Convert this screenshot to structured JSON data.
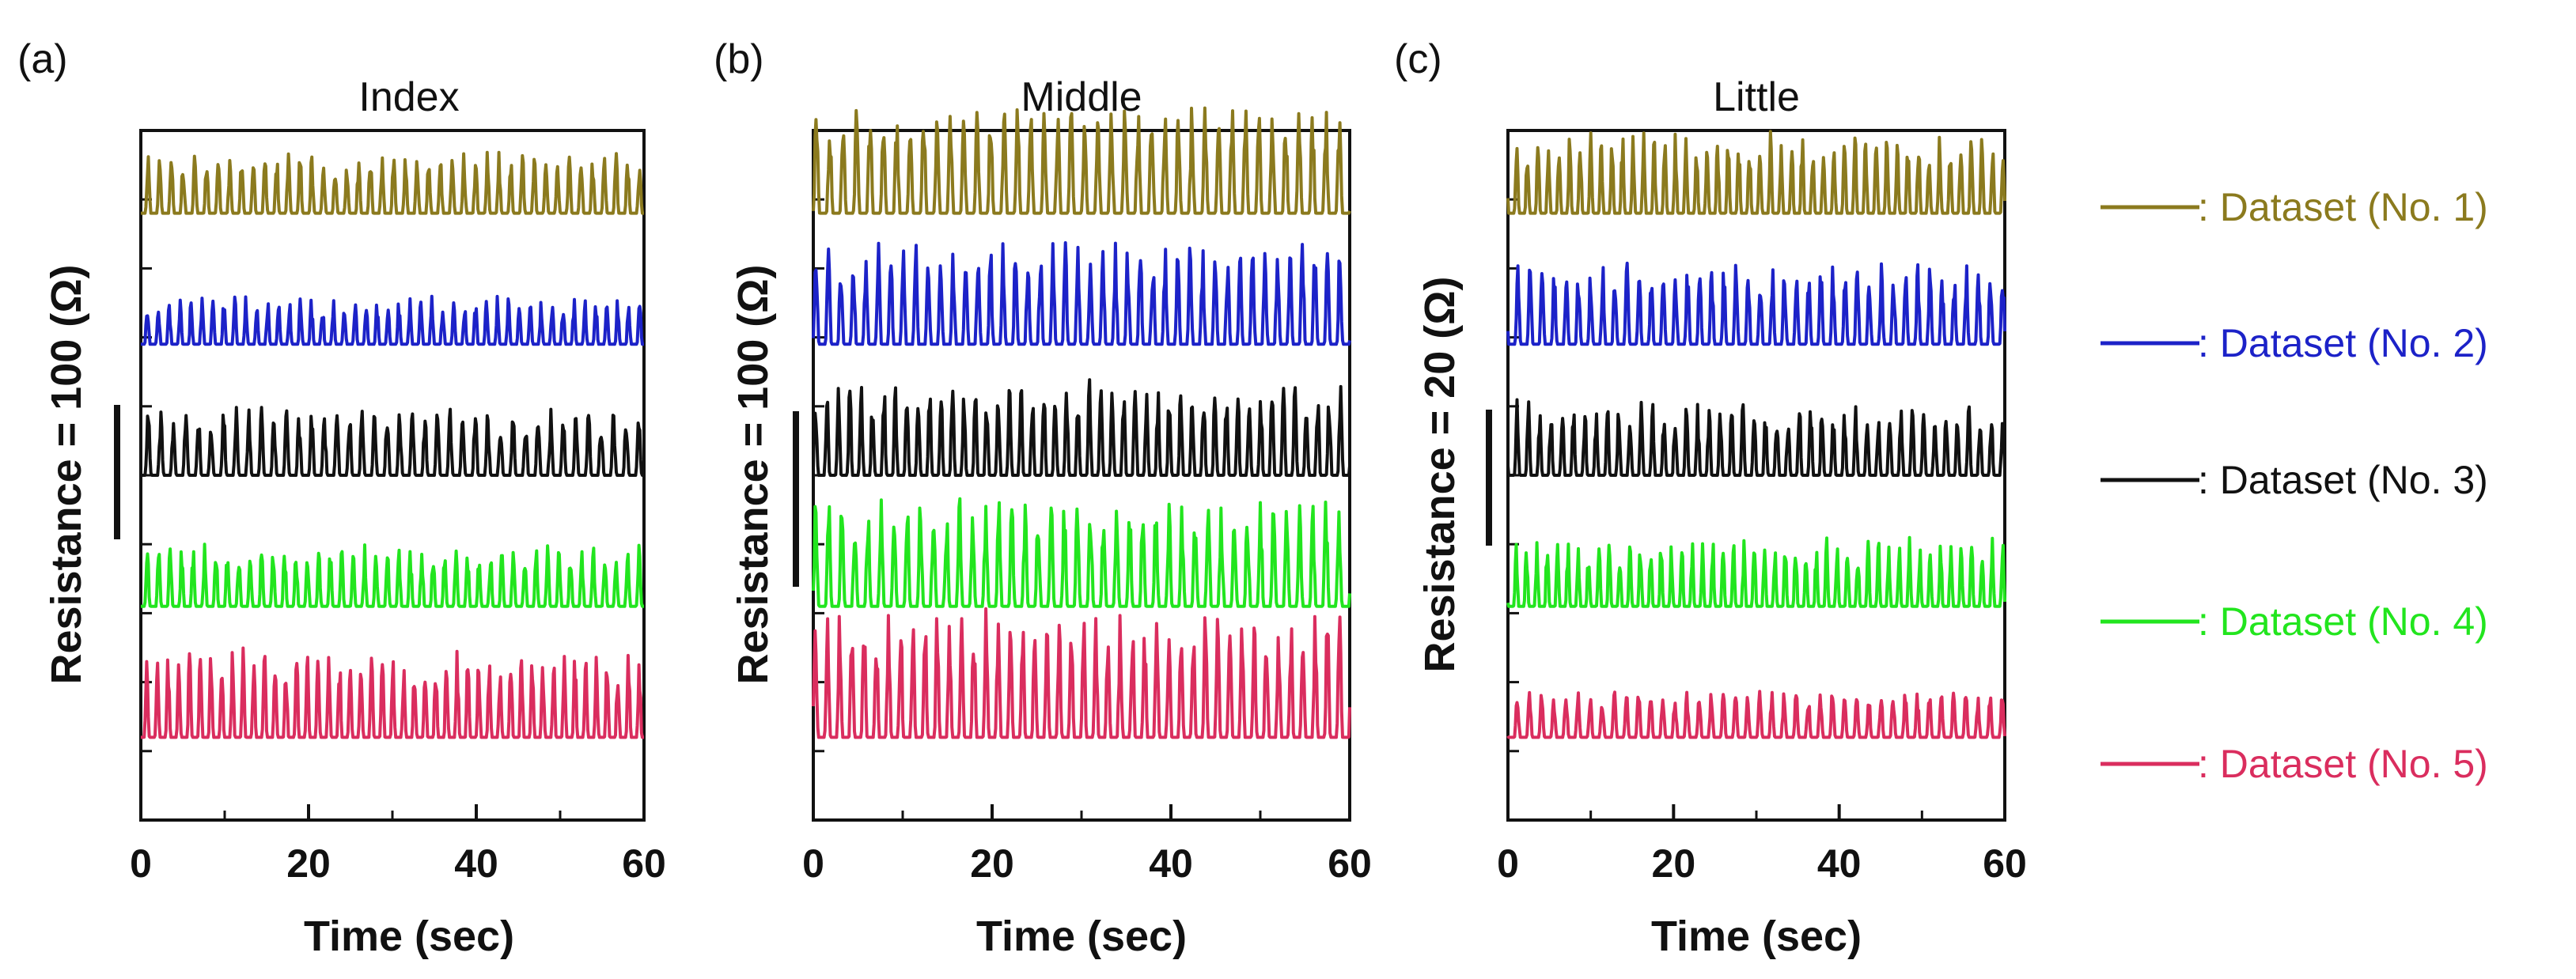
{
  "chart_data": [
    {
      "type": "line",
      "panel_label": "(a)",
      "title": "Index",
      "xlabel": "Time (sec)",
      "ylabel": "Resistance = 100 (Ω)",
      "xlim": [
        0,
        60
      ],
      "xticks": [
        "0",
        "20",
        "40",
        "60"
      ],
      "y_scale_bar": "100 Ω",
      "series": [
        {
          "name": "Dataset (No. 1)",
          "baseline_fraction": 0.12,
          "amplitude_fraction": 0.09
        },
        {
          "name": "Dataset (No. 2)",
          "baseline_fraction": 0.31,
          "amplitude_fraction": 0.07
        },
        {
          "name": "Dataset (No. 3)",
          "baseline_fraction": 0.5,
          "amplitude_fraction": 0.1
        },
        {
          "name": "Dataset (No. 4)",
          "baseline_fraction": 0.69,
          "amplitude_fraction": 0.09
        },
        {
          "name": "Dataset (No. 5)",
          "baseline_fraction": 0.88,
          "amplitude_fraction": 0.13
        }
      ]
    },
    {
      "type": "line",
      "panel_label": "(b)",
      "title": "Middle",
      "xlabel": "Time (sec)",
      "ylabel": "Resistance = 100 (Ω)",
      "xlim": [
        0,
        60
      ],
      "xticks": [
        "0",
        "20",
        "40",
        "60"
      ],
      "y_scale_bar": "100 Ω",
      "series": [
        {
          "name": "Dataset (No. 1)",
          "baseline_fraction": 0.12,
          "amplitude_fraction": 0.16
        },
        {
          "name": "Dataset (No. 2)",
          "baseline_fraction": 0.31,
          "amplitude_fraction": 0.15
        },
        {
          "name": "Dataset (No. 3)",
          "baseline_fraction": 0.5,
          "amplitude_fraction": 0.14
        },
        {
          "name": "Dataset (No. 4)",
          "baseline_fraction": 0.69,
          "amplitude_fraction": 0.16
        },
        {
          "name": "Dataset (No. 5)",
          "baseline_fraction": 0.88,
          "amplitude_fraction": 0.19
        }
      ]
    },
    {
      "type": "line",
      "panel_label": "(c)",
      "title": "Little",
      "xlabel": "Time (sec)",
      "ylabel": "Resistance = 20 (Ω)",
      "xlim": [
        0,
        60
      ],
      "xticks": [
        "0",
        "20",
        "40",
        "60"
      ],
      "y_scale_bar": "20 Ω",
      "series": [
        {
          "name": "Dataset (No. 1)",
          "baseline_fraction": 0.12,
          "amplitude_fraction": 0.12
        },
        {
          "name": "Dataset (No. 2)",
          "baseline_fraction": 0.31,
          "amplitude_fraction": 0.12
        },
        {
          "name": "Dataset (No. 3)",
          "baseline_fraction": 0.5,
          "amplitude_fraction": 0.11
        },
        {
          "name": "Dataset (No. 4)",
          "baseline_fraction": 0.69,
          "amplitude_fraction": 0.1
        },
        {
          "name": "Dataset (No. 5)",
          "baseline_fraction": 0.88,
          "amplitude_fraction": 0.07
        }
      ]
    }
  ],
  "legend": [
    {
      "label": ": Dataset (No. 1)",
      "color": "#8B7A1E"
    },
    {
      "label": ": Dataset (No. 2)",
      "color": "#1C22C8"
    },
    {
      "label": ": Dataset (No. 3)",
      "color": "#111111"
    },
    {
      "label": ": Dataset (No. 4)",
      "color": "#22E51E"
    },
    {
      "label": ": Dataset (No. 5)",
      "color": "#DA2D5E"
    }
  ]
}
